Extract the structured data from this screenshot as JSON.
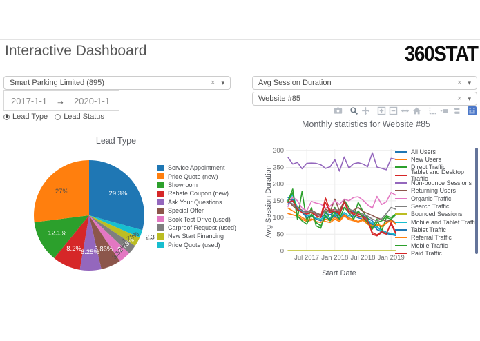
{
  "header": {
    "title": "Interactive Dashboard",
    "logo": "360STAT"
  },
  "controls": {
    "company": {
      "value": "Smart Parking Limited (895)",
      "clear": "×",
      "caret": "▾"
    },
    "date": {
      "start": "2017-1-1",
      "arrow": "→",
      "end": "2020-1-1"
    },
    "radios": [
      {
        "label": "Lead Type",
        "selected": true
      },
      {
        "label": "Lead Status",
        "selected": false
      }
    ],
    "metric": {
      "value": "Avg Session Duration",
      "clear": "×",
      "caret": "▾"
    },
    "website": {
      "value": "Website #85",
      "clear": "×",
      "caret": "▾"
    }
  },
  "modebar": {
    "icons": [
      "snapshot",
      "zoom",
      "pan",
      "zoom-in",
      "zoom-out",
      "autoscale",
      "reset-axes",
      "toggle-spikelines",
      "hover-closest",
      "hover-compare",
      "plotly-logo"
    ],
    "active": "zoom",
    "logo_color": "#4c78c9"
  },
  "chart_data": [
    {
      "type": "pie",
      "title": "Lead Type",
      "labels": [
        "Service Appointment",
        "Price Quote (new)",
        "Showroom",
        "Rebate Coupon (new)",
        "Ask Your Questions",
        "Special Offer",
        "Book Test Drive (used)",
        "Carproof Request (used)",
        "New Start Financing",
        "Price Quote (used)"
      ],
      "values": [
        29.3,
        27,
        12.1,
        8.2,
        6.25,
        5.86,
        3.52,
        2.73,
        2.73,
        2.3
      ],
      "percent_labels": [
        "29.3%",
        "27%",
        "12.1%",
        "8.2%",
        "6.25%",
        "5.86%",
        "3.52%",
        "2.73%",
        "2.73%",
        "2.3"
      ],
      "colors": [
        "#1f77b4",
        "#ff7f0e",
        "#2ca02c",
        "#d62728",
        "#9467bd",
        "#8c564b",
        "#e377c2",
        "#7f7f7f",
        "#bcbd22",
        "#17becf"
      ],
      "legend_position": "right"
    },
    {
      "type": "line",
      "title": "Monthly statistics for Website #85",
      "xlabel": "Start Date",
      "ylabel": "Avg Session Duration",
      "x": [
        "2017-03",
        "2017-04",
        "2017-05",
        "2017-06",
        "2017-07",
        "2017-08",
        "2017-09",
        "2017-10",
        "2017-11",
        "2017-12",
        "2018-01",
        "2018-02",
        "2018-03",
        "2018-04",
        "2018-05",
        "2018-06",
        "2018-07",
        "2018-08",
        "2018-09",
        "2018-10",
        "2018-11",
        "2018-12",
        "2019-01",
        "2019-02"
      ],
      "xticks": [
        {
          "label": "Jul 2017",
          "index": 4
        },
        {
          "label": "Jan 2018",
          "index": 10
        },
        {
          "label": "Jul 2018",
          "index": 16
        },
        {
          "label": "Jan 2019",
          "index": 22
        }
      ],
      "yticks": [
        0,
        50,
        100,
        150,
        200,
        250,
        300
      ],
      "ylim": [
        0,
        300
      ],
      "grid": true,
      "legend_position": "right",
      "legend_scrollbar": true,
      "series": [
        {
          "name": "All Users",
          "color": "#1f77b4",
          "values": [
            160,
            148,
            128,
            122,
            112,
            115,
            106,
            100,
            112,
            108,
            118,
            105,
            150,
            112,
            118,
            110,
            106,
            98,
            90,
            72,
            62,
            56,
            52,
            48
          ]
        },
        {
          "name": "New Users",
          "color": "#ff7f0e",
          "values": [
            112,
            108,
            104,
            95,
            88,
            92,
            100,
            94,
            88,
            85,
            95,
            88,
            105,
            94,
            90,
            85,
            92,
            80,
            70,
            78,
            72,
            82,
            95,
            80
          ]
        },
        {
          "name": "Direct Traffic",
          "color": "#2ca02c",
          "values": [
            150,
            185,
            95,
            178,
            88,
            130,
            75,
            68,
            120,
            95,
            130,
            105,
            152,
            130,
            105,
            145,
            118,
            98,
            70,
            95,
            60,
            100,
            95,
            108
          ]
        },
        {
          "name": "Tablet and Desktop Traffic",
          "color": "#d62728",
          "values": [
            152,
            155,
            132,
            120,
            115,
            120,
            110,
            105,
            158,
            120,
            125,
            115,
            150,
            120,
            114,
            110,
            104,
            94,
            50,
            45,
            55,
            50,
            85,
            55
          ]
        },
        {
          "name": "Non-bounce Sessions",
          "color": "#9467bd",
          "values": [
            280,
            260,
            265,
            246,
            262,
            263,
            262,
            258,
            247,
            252,
            273,
            239,
            281,
            248,
            261,
            264,
            260,
            252,
            294,
            251,
            247,
            243,
            277,
            274
          ]
        },
        {
          "name": "Returning Users",
          "color": "#8c564b",
          "values": [
            152,
            135,
            122,
            120,
            118,
            122,
            114,
            108,
            125,
            118,
            155,
            120,
            150,
            118,
            122,
            130,
            118,
            112,
            106,
            99,
            94,
            89,
            92,
            85
          ]
        },
        {
          "name": "Organic Traffic",
          "color": "#e377c2",
          "values": [
            133,
            162,
            150,
            128,
            120,
            148,
            143,
            140,
            128,
            134,
            150,
            139,
            155,
            150,
            160,
            162,
            152,
            138,
            128,
            163,
            139,
            147,
            175,
            167
          ]
        },
        {
          "name": "Search Traffic",
          "color": "#7f7f7f",
          "values": [
            150,
            140,
            125,
            120,
            115,
            120,
            112,
            105,
            120,
            115,
            125,
            120,
            130,
            125,
            120,
            114,
            110,
            104,
            95,
            90,
            96,
            112,
            130,
            125
          ]
        },
        {
          "name": "Bounced Sessions",
          "color": "#bcbd22",
          "values": [
            1,
            1,
            1,
            1,
            1,
            1,
            1,
            1,
            1,
            1,
            1,
            1,
            1,
            1,
            1,
            1,
            1,
            1,
            1,
            1,
            1,
            1,
            1,
            1
          ]
        },
        {
          "name": "Mobile and Tablet Traffic",
          "color": "#17becf",
          "values": [
            152,
            168,
            128,
            118,
            105,
            108,
            98,
            95,
            105,
            100,
            110,
            100,
            115,
            105,
            110,
            104,
            100,
            92,
            84,
            70,
            60,
            55,
            52,
            50
          ]
        },
        {
          "name": "Tablet Traffic",
          "color": "#1f77b4",
          "values": [
            140,
            155,
            125,
            115,
            100,
            105,
            95,
            90,
            100,
            95,
            105,
            95,
            110,
            100,
            105,
            99,
            95,
            87,
            80,
            64,
            57,
            52,
            49,
            46
          ]
        },
        {
          "name": "Referral Traffic",
          "color": "#ff7f0e",
          "values": [
            128,
            120,
            110,
            100,
            92,
            96,
            88,
            85,
            95,
            90,
            100,
            92,
            108,
            98,
            94,
            88,
            96,
            84,
            74,
            80,
            75,
            84,
            90,
            82
          ]
        },
        {
          "name": "Mobile Traffic",
          "color": "#2ca02c",
          "values": [
            148,
            175,
            105,
            90,
            80,
            110,
            85,
            75,
            105,
            90,
            115,
            95,
            130,
            115,
            95,
            120,
            100,
            85,
            65,
            85,
            90,
            105,
            100,
            110
          ]
        },
        {
          "name": "Paid Traffic",
          "color": "#d62728",
          "values": [
            145,
            150,
            125,
            115,
            110,
            115,
            105,
            100,
            145,
            115,
            120,
            110,
            145,
            115,
            110,
            104,
            100,
            90,
            55,
            48,
            58,
            52,
            80,
            52
          ]
        }
      ]
    }
  ]
}
